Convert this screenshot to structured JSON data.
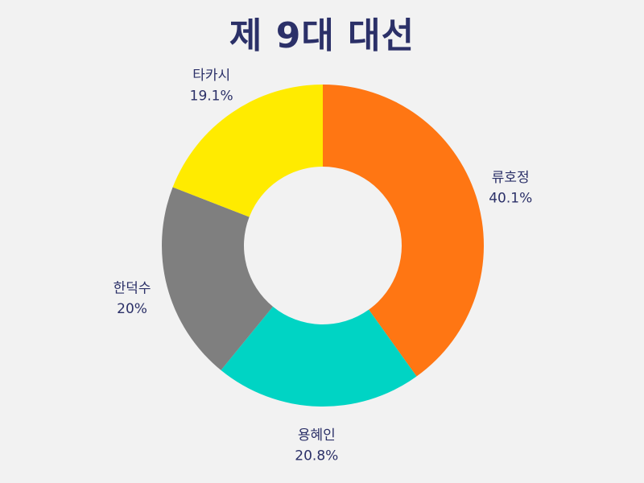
{
  "chart_data": {
    "type": "pie",
    "variant": "donut",
    "title": "제 9대 대선",
    "slices": [
      {
        "label": "류호정",
        "value": 40.1,
        "display": "40.1%",
        "color": "#ff7613"
      },
      {
        "label": "용혜인",
        "value": 20.8,
        "display": "20.8%",
        "color": "#00d4c4"
      },
      {
        "label": "한덕수",
        "value": 20.0,
        "display": "20%",
        "color": "#7f7f7f"
      },
      {
        "label": "타카시",
        "value": 19.1,
        "display": "19.1%",
        "color": "#ffeb00"
      }
    ]
  }
}
